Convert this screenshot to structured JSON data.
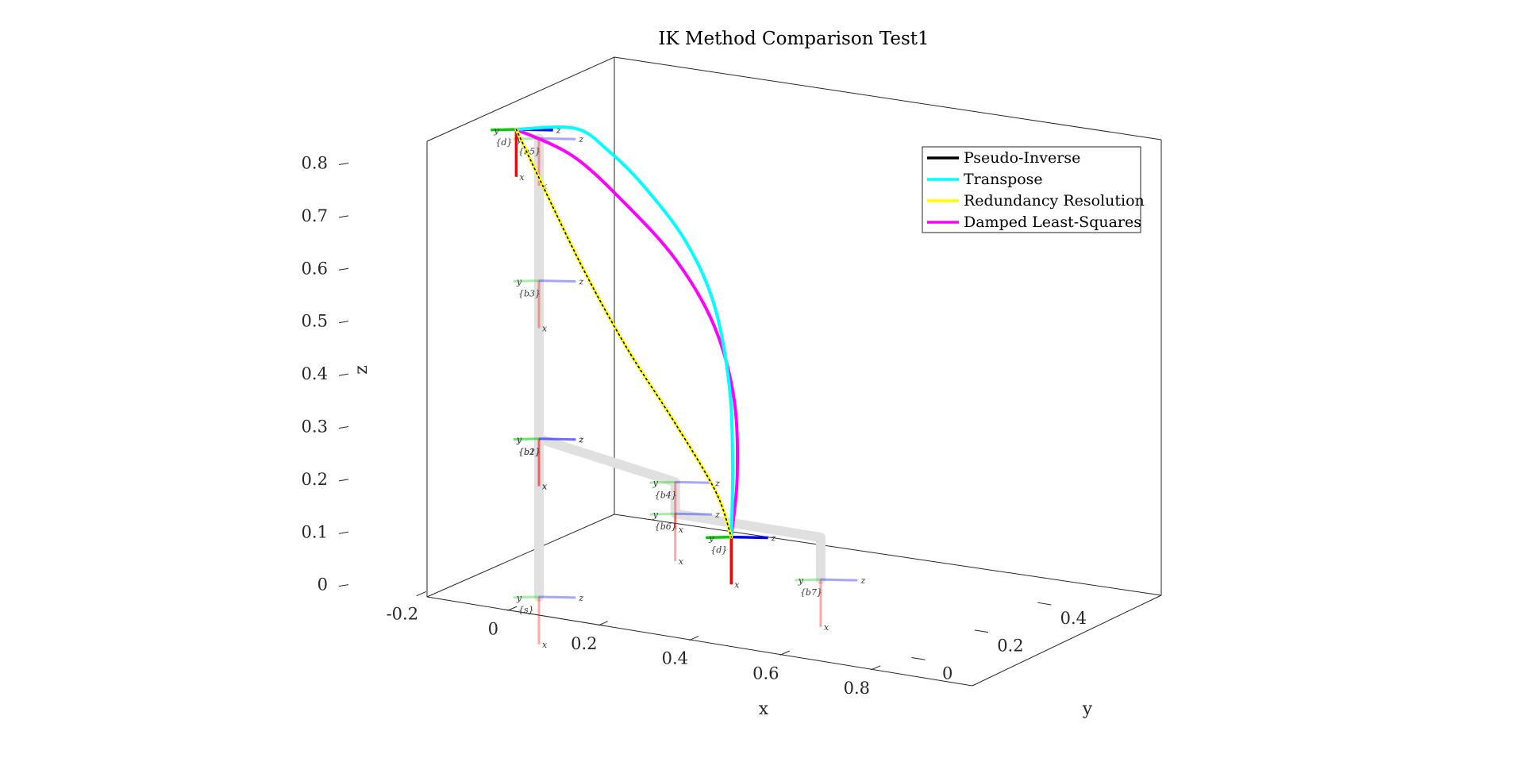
{
  "chart_data": {
    "type": "line",
    "title": "IK Method Comparison Test1",
    "xlabel": "x",
    "ylabel": "y",
    "zlabel": "z",
    "xlim": [
      -0.35,
      0.85
    ],
    "ylim": [
      -0.1,
      0.5
    ],
    "zlim": [
      0,
      0.9
    ],
    "x_ticks": [
      {
        "value": -0.2,
        "label": "-0.2"
      },
      {
        "value": 0,
        "label": "0"
      },
      {
        "value": 0.2,
        "label": "0.2"
      },
      {
        "value": 0.4,
        "label": "0.4"
      },
      {
        "value": 0.6,
        "label": "0.6"
      },
      {
        "value": 0.8,
        "label": "0.8"
      }
    ],
    "y_ticks": [
      {
        "value": 0,
        "label": "0"
      },
      {
        "value": 0.2,
        "label": "0.2"
      },
      {
        "value": 0.4,
        "label": "0.4"
      }
    ],
    "z_ticks": [
      {
        "value": 0,
        "label": "0"
      },
      {
        "value": 0.1,
        "label": "0.1"
      },
      {
        "value": 0.2,
        "label": "0.2"
      },
      {
        "value": 0.3,
        "label": "0.3"
      },
      {
        "value": 0.4,
        "label": "0.4"
      },
      {
        "value": 0.5,
        "label": "0.5"
      },
      {
        "value": 0.6,
        "label": "0.6"
      },
      {
        "value": 0.7,
        "label": "0.7"
      },
      {
        "value": 0.8,
        "label": "0.8"
      }
    ],
    "legend_position": "top-right",
    "grid": false,
    "series": [
      {
        "name": "Pseudo-Inverse",
        "color": "#000000",
        "points": [
          [
            -0.05,
            0,
            0.88
          ],
          [
            0.0,
            0.01,
            0.78
          ],
          [
            0.08,
            0.03,
            0.62
          ],
          [
            0.16,
            0.05,
            0.48
          ],
          [
            0.24,
            0.07,
            0.36
          ],
          [
            0.3,
            0.09,
            0.26
          ],
          [
            0.33,
            0.1,
            0.2
          ],
          [
            0.34,
            0.12,
            0.13
          ]
        ]
      },
      {
        "name": "Transpose",
        "color": "#00ffff",
        "points": [
          [
            -0.05,
            0,
            0.88
          ],
          [
            0.08,
            0.0,
            0.9
          ],
          [
            0.14,
            0.02,
            0.86
          ],
          [
            0.2,
            0.04,
            0.8
          ],
          [
            0.28,
            0.06,
            0.7
          ],
          [
            0.33,
            0.08,
            0.58
          ],
          [
            0.35,
            0.1,
            0.42
          ],
          [
            0.35,
            0.11,
            0.26
          ],
          [
            0.34,
            0.12,
            0.13
          ]
        ]
      },
      {
        "name": "Redundancy Resolution",
        "color": "#ffff00",
        "points": [
          [
            -0.05,
            0,
            0.88
          ],
          [
            0.0,
            0.01,
            0.78
          ],
          [
            0.08,
            0.03,
            0.62
          ],
          [
            0.16,
            0.05,
            0.48
          ],
          [
            0.24,
            0.07,
            0.36
          ],
          [
            0.3,
            0.09,
            0.26
          ],
          [
            0.33,
            0.1,
            0.2
          ],
          [
            0.34,
            0.12,
            0.13
          ]
        ]
      },
      {
        "name": "Damped Least-Squares",
        "color": "#ff00ff",
        "points": [
          [
            -0.05,
            0,
            0.88
          ],
          [
            0.06,
            0.02,
            0.84
          ],
          [
            0.16,
            0.04,
            0.76
          ],
          [
            0.26,
            0.06,
            0.66
          ],
          [
            0.33,
            0.08,
            0.54
          ],
          [
            0.36,
            0.1,
            0.4
          ],
          [
            0.36,
            0.11,
            0.25
          ],
          [
            0.34,
            0.12,
            0.13
          ]
        ]
      }
    ],
    "robot_links": [
      [
        [
          0,
          0,
          0
        ],
        [
          0,
          0,
          0.3
        ]
      ],
      [
        [
          0,
          0,
          0.3
        ],
        [
          0,
          0,
          0.87
        ]
      ],
      [
        [
          0,
          0,
          0.3
        ],
        [
          0.3,
          0.0,
          0.26
        ]
      ],
      [
        [
          0.3,
          0.0,
          0.26
        ],
        [
          0.3,
          0.0,
          0.2
        ]
      ],
      [
        [
          0.3,
          0.0,
          0.2
        ],
        [
          0.62,
          0.0,
          0.2
        ]
      ],
      [
        [
          0.62,
          0.0,
          0.2
        ],
        [
          0.62,
          0.0,
          0.12
        ]
      ]
    ],
    "frames": [
      {
        "label": "{s}",
        "origin": [
          0,
          0,
          0
        ],
        "axes": [
          "x",
          "y",
          "z"
        ]
      },
      {
        "label": "{b1}",
        "origin": [
          0,
          0,
          0.3
        ],
        "axes": [
          "x",
          "y",
          "z"
        ]
      },
      {
        "label": "{b2}",
        "origin": [
          0,
          0,
          0.3
        ],
        "axes": [
          "x",
          "y",
          "z"
        ]
      },
      {
        "label": "{b3}",
        "origin": [
          0,
          0,
          0.6
        ],
        "axes": [
          "x",
          "y",
          "z"
        ]
      },
      {
        "label": "{b4}",
        "origin": [
          0.3,
          0,
          0.26
        ],
        "axes": [
          "x",
          "y",
          "z"
        ]
      },
      {
        "label": "{b5}",
        "origin": [
          0,
          0,
          0.87
        ],
        "axes": [
          "x",
          "y",
          "z"
        ]
      },
      {
        "label": "{b6}",
        "origin": [
          0.3,
          0,
          0.2
        ],
        "axes": [
          "x",
          "y",
          "z"
        ]
      },
      {
        "label": "{b7}",
        "origin": [
          0.62,
          0,
          0.12
        ],
        "axes": [
          "x",
          "y",
          "z"
        ]
      }
    ],
    "target_frames": [
      {
        "label": "{d}",
        "origin": [
          -0.05,
          0,
          0.88
        ]
      },
      {
        "label": "{d}",
        "origin": [
          0.34,
          0.12,
          0.13
        ]
      }
    ]
  },
  "frame_colors": {
    "x": "#ff0000",
    "y": "#00cc00",
    "z": "#0000ff"
  },
  "link_color": "#e0e0e0"
}
